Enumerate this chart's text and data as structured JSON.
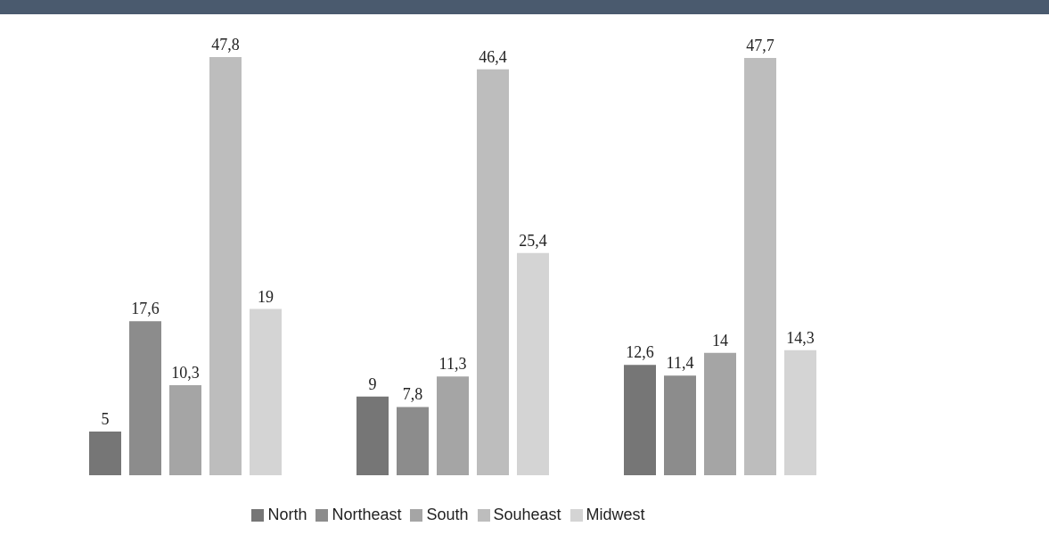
{
  "chart_data": {
    "type": "bar",
    "categories": [
      null,
      null,
      null
    ],
    "series": [
      {
        "name": "North",
        "color": "#767676",
        "values": [
          5,
          9,
          12.6
        ],
        "value_labels": [
          "5",
          "9",
          "12,6"
        ]
      },
      {
        "name": "Northeast",
        "color": "#8c8c8c",
        "values": [
          17.6,
          7.8,
          11.4
        ],
        "value_labels": [
          "17,6",
          "7,8",
          "11,4"
        ]
      },
      {
        "name": "South",
        "color": "#a5a5a5",
        "values": [
          10.3,
          11.3,
          14
        ],
        "value_labels": [
          "10,3",
          "11,3",
          "14"
        ]
      },
      {
        "name": "Souheast",
        "color": "#bdbdbd",
        "values": [
          47.8,
          46.4,
          47.7
        ],
        "value_labels": [
          "47,8",
          "46,4",
          "47,7"
        ]
      },
      {
        "name": "Midwest",
        "color": "#d4d4d4",
        "values": [
          19,
          25.4,
          14.3
        ],
        "value_labels": [
          "19",
          "25,4",
          "14,3"
        ]
      }
    ],
    "legend": "bottom",
    "grid": false
  }
}
